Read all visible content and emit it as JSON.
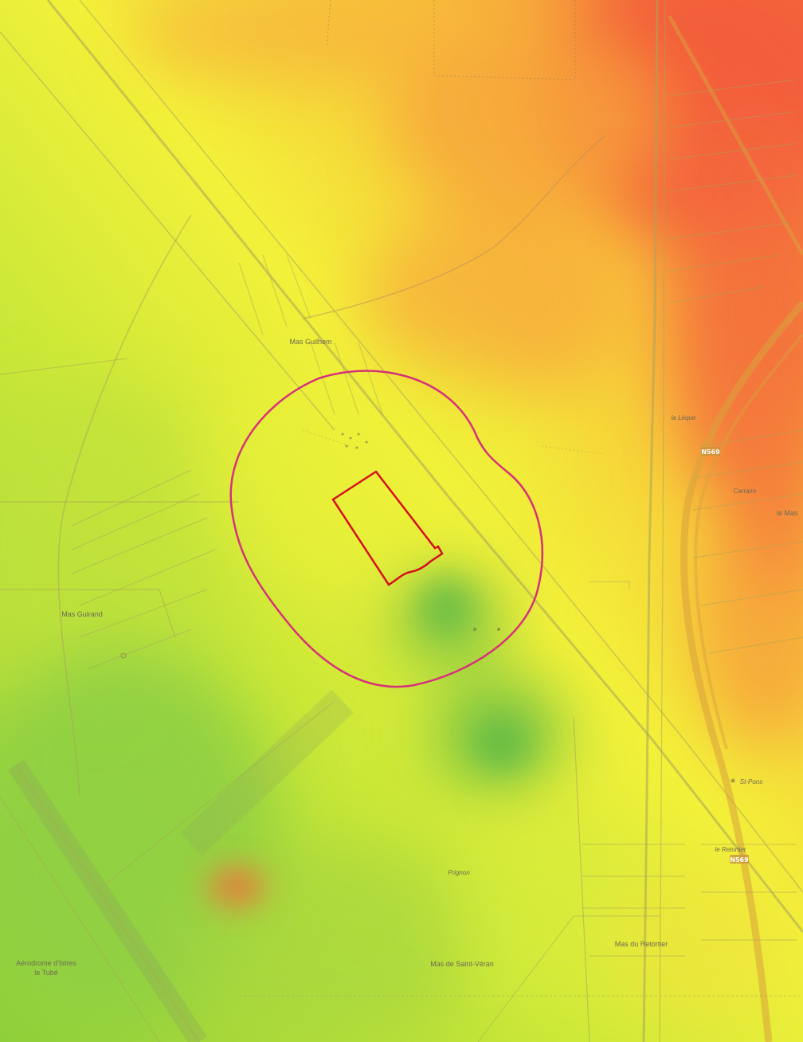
{
  "map": {
    "labels": {
      "mas_guilhem": "Mas Guilhem",
      "mas_guirand": "Mas Guirand",
      "la_lequie": "la Lèque",
      "carraire": "Carraire",
      "le_mas": "le Mas",
      "prignon": "Prignon",
      "mas_saint_veran": "Mas de Saint-Véran",
      "mas_retortier": "Mas du Retortier",
      "le_retortier": "le Retortier",
      "st_pons": "St-Pons",
      "aerodrome_line1": "Aérodrome d'Istres",
      "aerodrome_line2": "le Tubé"
    },
    "road_shields": {
      "n569": "N569",
      "n569b": "N569"
    },
    "overlay": {
      "buffer_color": "#d6317a",
      "site_color": "#d4101e",
      "heat_high_color": "#f2553a",
      "heat_mid_color": "#f6f232",
      "heat_low_color": "#5fbf45"
    }
  }
}
